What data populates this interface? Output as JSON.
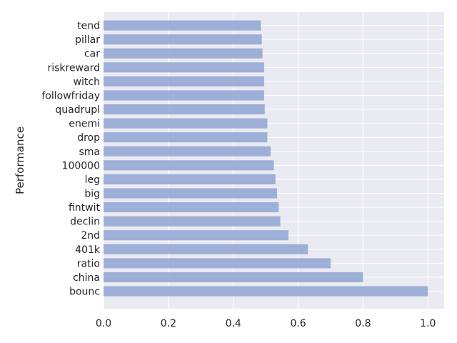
{
  "chart_data": {
    "type": "bar",
    "orientation": "horizontal",
    "title": "",
    "xlabel": "",
    "ylabel": "Performance",
    "xlim": [
      0,
      1.05
    ],
    "xticks": [
      "0.0",
      "0.2",
      "0.4",
      "0.6",
      "0.8",
      "1.0"
    ],
    "grid": true,
    "bar_color": "#8fa5d1",
    "background_color": "#eaeaf2",
    "categories": [
      "bounc",
      "china",
      "ratio",
      "401k",
      "2nd",
      "declin",
      "fintwit",
      "big",
      "leg",
      "100000",
      "sma",
      "drop",
      "enemi",
      "quadrupl",
      "followfriday",
      "witch",
      "riskreward",
      "car",
      "pillar",
      "tend"
    ],
    "values": [
      1.0,
      0.8,
      0.7,
      0.63,
      0.57,
      0.545,
      0.54,
      0.535,
      0.53,
      0.525,
      0.515,
      0.505,
      0.505,
      0.497,
      0.495,
      0.495,
      0.495,
      0.49,
      0.488,
      0.485
    ]
  }
}
